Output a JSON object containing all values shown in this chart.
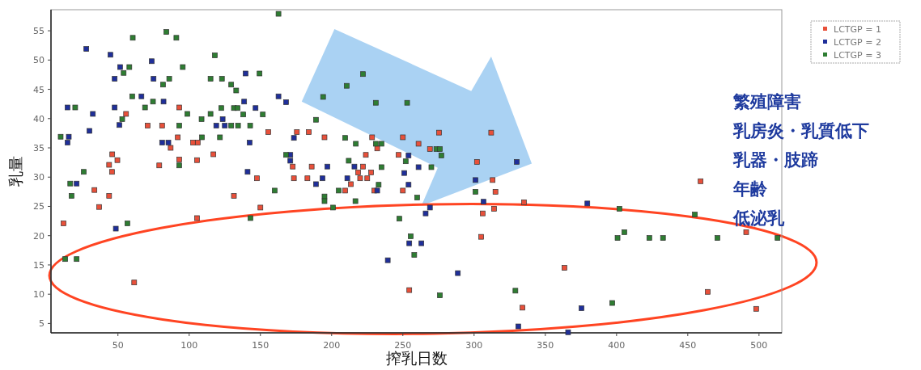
{
  "chart_data": {
    "type": "scatter",
    "xlabel": "搾乳日数",
    "ylabel": "乳量",
    "xlim": [
      3,
      516
    ],
    "ylim": [
      3.4,
      58.6
    ],
    "xticks": [
      50,
      100,
      150,
      200,
      250,
      300,
      350,
      400,
      450,
      500
    ],
    "yticks": [
      5,
      10,
      15,
      20,
      25,
      30,
      35,
      40,
      45,
      50,
      55
    ],
    "marker": "square",
    "legend": "top right",
    "annotations": [
      "繁殖障害",
      "乳房炎・乳質低下",
      "乳器・肢蹄",
      "年齢",
      "低泌乳"
    ],
    "series": [
      {
        "name": "LCTGP = 1",
        "color": "#e8503a",
        "x": [
          55.7,
          93,
          70.8,
          81,
          92,
          87,
          102.7,
          106,
          46,
          49.6,
          43.8,
          45.8,
          79,
          93,
          105.5,
          117,
          33.5,
          43.8,
          36.8,
          11.8,
          105.5,
          61.4,
          131.4,
          155.5,
          175.6,
          184,
          195,
          228.4,
          250,
          261,
          232,
          224,
          247,
          172.7,
          186,
          222,
          218.6,
          227.7,
          220,
          225,
          147.6,
          173.5,
          183,
          213.5,
          209.5,
          230,
          250,
          254.5,
          150,
          275.4,
          312,
          269,
          302,
          313,
          315,
          335,
          314,
          306,
          305,
          334,
          363.4,
          459,
          491,
          464,
          498
        ],
        "values": [
          40.8,
          41.9,
          38.8,
          38.8,
          36.8,
          35,
          35.9,
          35.9,
          33.9,
          32.9,
          32.1,
          30.9,
          32,
          33,
          32.9,
          33.9,
          27.8,
          26.8,
          24.9,
          22.1,
          23,
          12,
          26.8,
          37.7,
          37.7,
          37.7,
          36.8,
          36.8,
          36.8,
          35.7,
          34.9,
          33.8,
          33.8,
          31.8,
          31.8,
          31.8,
          30.8,
          30.8,
          29.8,
          29.8,
          29.8,
          29.8,
          29.8,
          28.8,
          27.7,
          27.7,
          27.7,
          10.7,
          24.8,
          37.6,
          37.6,
          34.8,
          32.6,
          29.5,
          27.5,
          25.7,
          24.6,
          23.8,
          19.8,
          7.7,
          14.5,
          29.3,
          20.6,
          10.4,
          7.5
        ]
      },
      {
        "name": "LCTGP = 2",
        "color": "#1f2f9a",
        "x": [
          27.8,
          44.7,
          51.5,
          47.7,
          73.7,
          75,
          66.5,
          82,
          14.6,
          47.7,
          32.4,
          51,
          123.5,
          119,
          125,
          15.5,
          14.6,
          30,
          81,
          85.4,
          21,
          48.5,
          139.6,
          162.7,
          168,
          138.6,
          146.6,
          142.4,
          173.5,
          171,
          171,
          141,
          197,
          216,
          193.6,
          189,
          211,
          232,
          254,
          251,
          254,
          261,
          254.5,
          239.4,
          330,
          301,
          306.6,
          379.5,
          269,
          266,
          263,
          288.6,
          375.4,
          331,
          366
        ],
        "values": [
          51.9,
          50.9,
          48.8,
          46.8,
          49.8,
          46.8,
          43.8,
          42.9,
          41.9,
          41.9,
          40.8,
          38.9,
          39.9,
          38.8,
          38.8,
          36.9,
          35.9,
          37.9,
          35.9,
          35.9,
          28.9,
          21.2,
          47.7,
          43.8,
          42.8,
          42.9,
          41.8,
          35.9,
          36.7,
          33.8,
          32.8,
          30.9,
          31.8,
          31.8,
          29.8,
          28.8,
          29.8,
          27.7,
          33.7,
          30.7,
          28.7,
          31.7,
          18.7,
          15.8,
          32.6,
          29.5,
          25.8,
          25.5,
          24.8,
          23.8,
          18.7,
          13.6,
          7.6,
          4.5,
          3.5
        ]
      },
      {
        "name": "LCTGP = 3",
        "color": "#2e7d32",
        "x": [
          60.4,
          84,
          91,
          58,
          54,
          95.5,
          118,
          81.6,
          86,
          115,
          123,
          129.5,
          133,
          60,
          74.6,
          69,
          20,
          98.7,
          53,
          108.7,
          115,
          122.5,
          131.4,
          134,
          93,
          129.5,
          134.3,
          109,
          121.6,
          9.8,
          93,
          26,
          16.5,
          17.4,
          56.6,
          13,
          21,
          162.7,
          149.4,
          222,
          210.6,
          194,
          231,
          253,
          138,
          142.8,
          151.7,
          189,
          160,
          168,
          195,
          195,
          201,
          143,
          255.5,
          258,
          209.5,
          217,
          231,
          235,
          212,
          235,
          233,
          205,
          216.7,
          252,
          260,
          247.5,
          273.5,
          276,
          277,
          270,
          301,
          276,
          329,
          402,
          455,
          405.5,
          400.7,
          423,
          432.6,
          470.8,
          513,
          397
        ],
        "values": [
          53.8,
          54.8,
          53.8,
          48.8,
          47.8,
          48.8,
          50.8,
          45.8,
          46.8,
          46.8,
          46.8,
          45.8,
          44.8,
          43.8,
          42.9,
          41.9,
          41.9,
          40.8,
          39.9,
          39.9,
          40.8,
          41.8,
          41.8,
          41.8,
          38.8,
          38.8,
          38.8,
          36.8,
          36.8,
          36.9,
          32,
          30.9,
          28.9,
          26.8,
          22.1,
          16,
          16,
          57.9,
          47.7,
          47.6,
          45.6,
          43.7,
          42.7,
          42.7,
          40.7,
          38.8,
          40.7,
          39.8,
          27.7,
          33.8,
          26.7,
          25.9,
          24.8,
          23,
          19.9,
          16.7,
          36.7,
          35.7,
          35.7,
          35.7,
          32.8,
          31.7,
          28.7,
          27.7,
          25.9,
          32.7,
          26.5,
          22.9,
          34.8,
          34.8,
          33.7,
          31.7,
          27.5,
          9.8,
          10.6,
          24.6,
          23.6,
          20.6,
          19.6,
          19.6,
          19.6,
          19.6,
          19.6,
          8.5
        ]
      }
    ]
  }
}
